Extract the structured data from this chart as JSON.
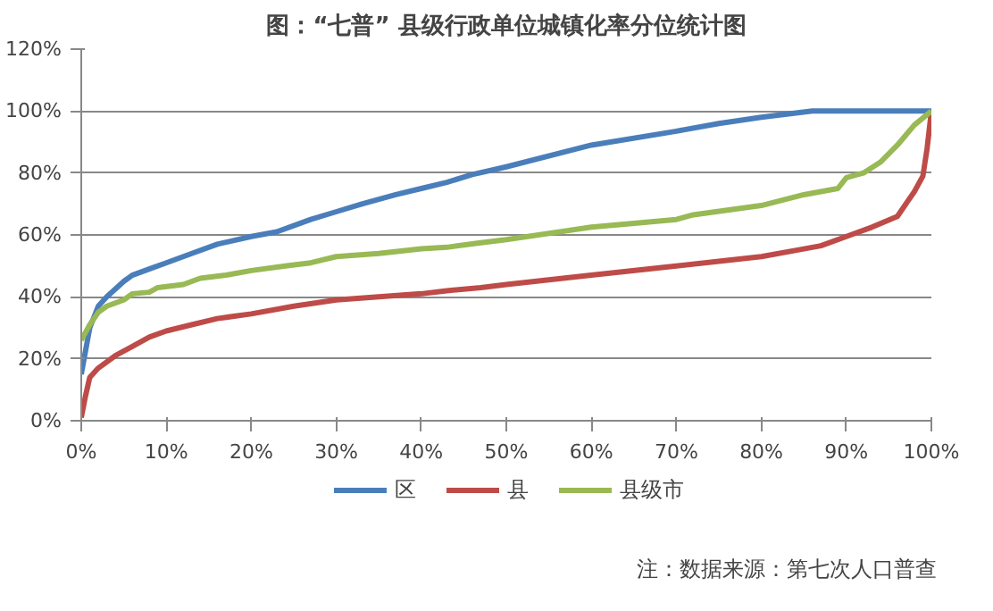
{
  "chart_data": {
    "type": "line",
    "title": "图：“七普” 县级行政单位城镇化率分位统计图",
    "xlim": [
      0,
      100
    ],
    "ylim": [
      0,
      120
    ],
    "xticks": [
      {
        "value": 0,
        "label": "0%"
      },
      {
        "value": 10,
        "label": "10%"
      },
      {
        "value": 20,
        "label": "20%"
      },
      {
        "value": 30,
        "label": "30%"
      },
      {
        "value": 40,
        "label": "40%"
      },
      {
        "value": 50,
        "label": "50%"
      },
      {
        "value": 60,
        "label": "60%"
      },
      {
        "value": 70,
        "label": "70%"
      },
      {
        "value": 80,
        "label": "80%"
      },
      {
        "value": 90,
        "label": "90%"
      },
      {
        "value": 100,
        "label": "100%"
      }
    ],
    "yticks": [
      {
        "value": 0,
        "label": "0%"
      },
      {
        "value": 20,
        "label": "20%"
      },
      {
        "value": 40,
        "label": "40%"
      },
      {
        "value": 60,
        "label": "60%"
      },
      {
        "value": 80,
        "label": "80%"
      },
      {
        "value": 100,
        "label": "100%"
      },
      {
        "value": 120,
        "label": "120%"
      }
    ],
    "series": [
      {
        "name": "区",
        "color": "#4a7ebb",
        "x": [
          0,
          1,
          2,
          3,
          5,
          6,
          8,
          10,
          13,
          16,
          20,
          23,
          27,
          30,
          33,
          37,
          40,
          43,
          46,
          50,
          60,
          70,
          75,
          80,
          86,
          100
        ],
        "values": [
          15,
          30,
          37,
          40,
          45,
          47,
          49,
          51,
          54,
          57,
          59.5,
          61,
          65,
          67.5,
          70,
          73,
          75,
          77,
          79.5,
          82,
          89,
          93.5,
          96,
          98,
          100,
          100
        ]
      },
      {
        "name": "县",
        "color": "#be4b48",
        "x": [
          0,
          0.5,
          1,
          2,
          4,
          6,
          8,
          10,
          13,
          16,
          20,
          25,
          30,
          35,
          40,
          43,
          47,
          50,
          60,
          70,
          75,
          80,
          85,
          87,
          90,
          93,
          96,
          98,
          99,
          99.5,
          100
        ],
        "values": [
          1,
          8,
          14,
          17,
          21,
          24,
          27,
          29,
          31,
          33,
          34.5,
          37,
          39,
          40,
          41,
          42,
          43,
          44,
          47,
          50,
          51.5,
          53,
          55.5,
          56.5,
          59.5,
          62.5,
          66,
          74,
          79,
          88,
          100
        ]
      },
      {
        "name": "县级市",
        "color": "#98b954",
        "x": [
          0,
          1,
          2,
          3,
          4,
          5,
          6,
          8,
          9,
          12,
          14,
          17,
          20,
          24,
          27,
          30,
          35,
          40,
          43,
          47,
          50,
          60,
          70,
          72,
          80,
          85,
          86,
          89,
          90,
          92,
          94,
          96,
          98,
          100
        ],
        "values": [
          26,
          31,
          35,
          37,
          38,
          39,
          41,
          41.5,
          43,
          44,
          46,
          47,
          48.5,
          50,
          51,
          53,
          54,
          55.5,
          56,
          57.5,
          58.5,
          62.5,
          65,
          66.5,
          69.5,
          73,
          73.5,
          75,
          78.5,
          80,
          83.5,
          89,
          95.5,
          100
        ]
      }
    ],
    "grid": "y",
    "legend": "bottom",
    "line_style": "solid",
    "marker": "none",
    "annotations": [
      "注：数据来源：第七次人口普查"
    ]
  }
}
